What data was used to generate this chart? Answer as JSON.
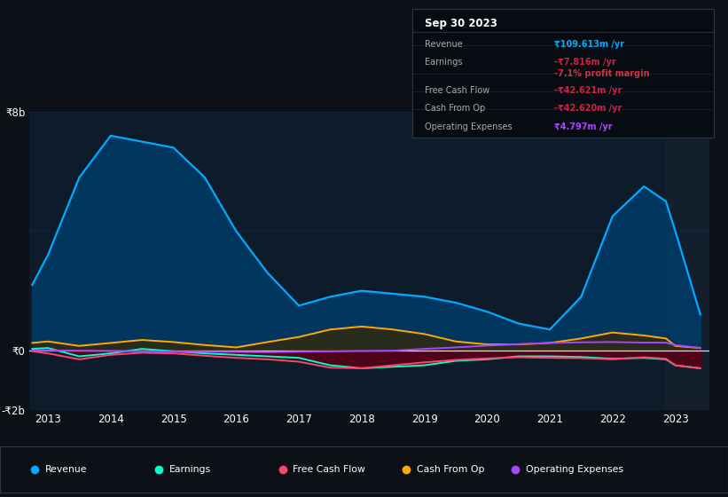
{
  "bg_color": "#0d1117",
  "plot_bg_color": "#0d1b2a",
  "years": [
    2012.75,
    2013.0,
    2013.5,
    2014.0,
    2014.5,
    2015.0,
    2015.5,
    2016.0,
    2016.5,
    2017.0,
    2017.5,
    2018.0,
    2018.5,
    2019.0,
    2019.5,
    2020.0,
    2020.5,
    2021.0,
    2021.5,
    2022.0,
    2022.5,
    2022.85,
    2023.0,
    2023.4
  ],
  "revenue": [
    2200,
    3200,
    5800,
    7200,
    7000,
    6800,
    5800,
    4000,
    2600,
    1500,
    1800,
    2000,
    1900,
    1800,
    1600,
    1300,
    900,
    700,
    1800,
    4500,
    5500,
    5000,
    4000,
    1200
  ],
  "earnings": [
    50,
    80,
    -200,
    -100,
    50,
    -30,
    -100,
    -150,
    -200,
    -250,
    -500,
    -600,
    -550,
    -500,
    -350,
    -300,
    -200,
    -200,
    -220,
    -280,
    -250,
    -300,
    -500,
    -600
  ],
  "free_cash_flow": [
    -30,
    -100,
    -300,
    -150,
    -80,
    -100,
    -180,
    -250,
    -300,
    -380,
    -580,
    -600,
    -500,
    -400,
    -320,
    -270,
    -230,
    -250,
    -260,
    -300,
    -230,
    -280,
    -500,
    -600
  ],
  "cash_from_op": [
    250,
    300,
    150,
    250,
    350,
    280,
    180,
    100,
    280,
    450,
    700,
    800,
    700,
    550,
    300,
    200,
    200,
    250,
    400,
    600,
    500,
    400,
    150,
    80
  ],
  "operating_expenses": [
    -5,
    0,
    -10,
    -20,
    -30,
    -40,
    -45,
    -50,
    -60,
    -45,
    -35,
    -20,
    -10,
    50,
    100,
    160,
    210,
    250,
    270,
    280,
    260,
    260,
    180,
    80
  ],
  "revenue_color": "#00aaff",
  "earnings_color": "#00ffcc",
  "free_cash_flow_color": "#ff4466",
  "cash_from_op_color": "#ffaa00",
  "operating_expenses_color": "#aa44ff",
  "revenue_fill_color": "#003a66",
  "earnings_fill_color": "#5a0018",
  "cash_from_op_fill_color": "#3a2800",
  "ylim": [
    -2000,
    8000
  ],
  "xlim": [
    2012.7,
    2023.55
  ],
  "xticks": [
    2013,
    2014,
    2015,
    2016,
    2017,
    2018,
    2019,
    2020,
    2021,
    2022,
    2023
  ],
  "highlight_x_start": 2022.83,
  "highlight_color": "#141f2e",
  "info_box_title": "Sep 30 2023",
  "label_map": [
    [
      "Revenue",
      "₹109.613m /yr",
      "#00aaff",
      "#888888"
    ],
    [
      "Earnings",
      "-₹7.816m /yr",
      "#cc2244",
      "#888888"
    ],
    [
      "",
      "-7.1% profit margin",
      "#cc3344",
      "#888888"
    ],
    [
      "Free Cash Flow",
      "-₹42.621m /yr",
      "#cc2244",
      "#888888"
    ],
    [
      "Cash From Op",
      "-₹42.620m /yr",
      "#cc2244",
      "#888888"
    ],
    [
      "Operating Expenses",
      "₹4.797m /yr",
      "#aa44ff",
      "#888888"
    ]
  ],
  "legend_items": [
    {
      "label": "Revenue",
      "color": "#00aaff"
    },
    {
      "label": "Earnings",
      "color": "#00ffcc"
    },
    {
      "label": "Free Cash Flow",
      "color": "#ff4466"
    },
    {
      "label": "Cash From Op",
      "color": "#ffaa00"
    },
    {
      "label": "Operating Expenses",
      "color": "#aa44ff"
    }
  ]
}
